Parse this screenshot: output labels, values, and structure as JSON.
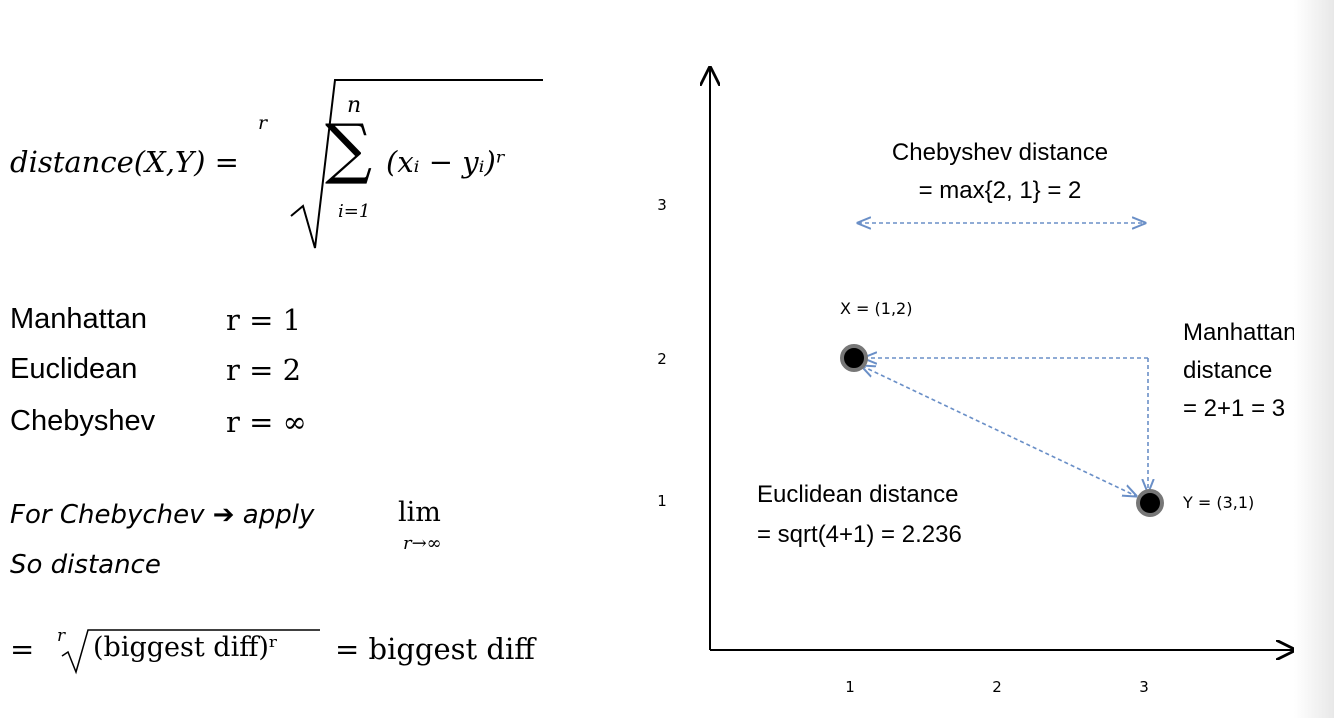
{
  "formula": {
    "lhs": "distance(X,Y) =",
    "root_index": "r",
    "sum_upper": "n",
    "sum_lower": "i=1",
    "sum_symbol": "∑",
    "term": "(xᵢ − yᵢ)ʳ"
  },
  "metrics": [
    {
      "name": "Manhattan",
      "r": "r = 1"
    },
    {
      "name": "Euclidean",
      "r": "r = 2"
    },
    {
      "name": "Chebyshev",
      "r": "r = ∞"
    }
  ],
  "note": {
    "line1": "For Chebychev ➔ apply",
    "lim_word": "lim",
    "lim_sub": "r→∞",
    "line2": "So distance"
  },
  "result": {
    "eq": "=",
    "root_index": "r",
    "radicand": "(biggest diff)ʳ",
    "rhs": "= biggest diff"
  },
  "diagram": {
    "x_ticks": [
      "1",
      "2",
      "3"
    ],
    "y_ticks": [
      "1",
      "2",
      "3"
    ],
    "point_x": {
      "label": "X = (1,2)",
      "x": 1,
      "y": 2
    },
    "point_y": {
      "label": "Y = (3,1)",
      "x": 3,
      "y": 1
    },
    "chebyshev_l1": "Chebyshev distance",
    "chebyshev_l2": "= max{2, 1} = 2",
    "manhattan_l1": "Manhattan",
    "manhattan_l2": "distance",
    "manhattan_l3": "= 2+1 = 3",
    "euclid_l1": "Euclidean distance",
    "euclid_l2": "= sqrt(4+1) = 2.236",
    "colors": {
      "dashed": "#6a8fc7",
      "point": "#000000",
      "point_ring": "#777777"
    }
  }
}
